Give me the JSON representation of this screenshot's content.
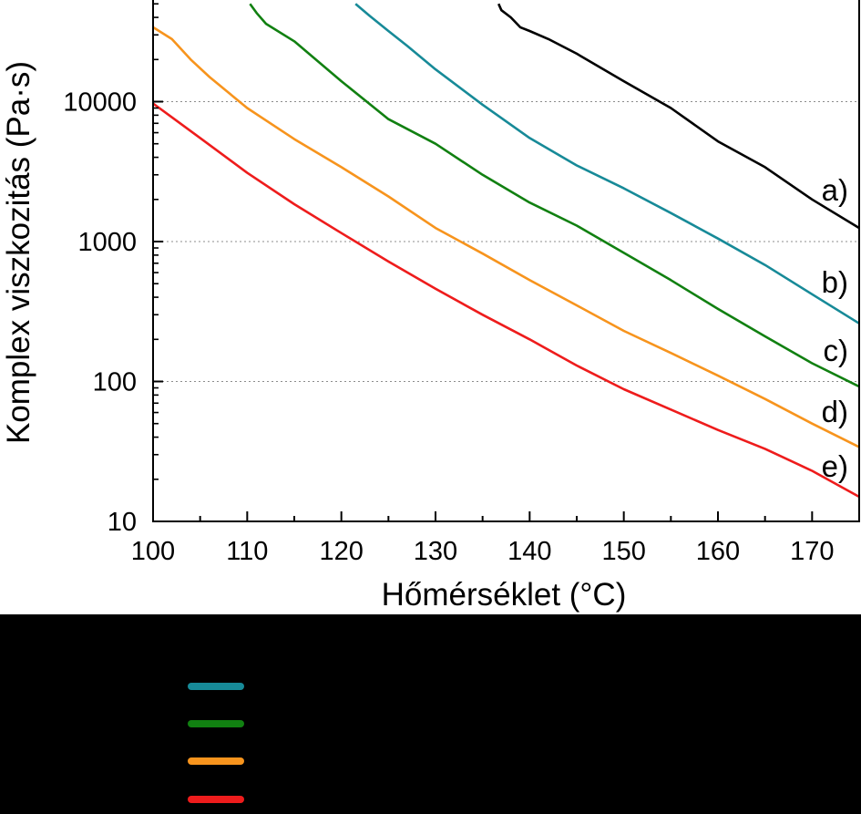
{
  "chart_data": {
    "type": "line",
    "title": "",
    "xlabel": "Hőmérséklet (°C)",
    "ylabel": "Komplex viszkozitás (Pa·s)",
    "xlim": [
      100,
      175
    ],
    "ylim": [
      10,
      50000
    ],
    "yscale": "log",
    "xticks": [
      100,
      110,
      120,
      130,
      140,
      150,
      160,
      170
    ],
    "xtick_labels": [
      "100",
      "110",
      "120",
      "130",
      "140",
      "150",
      "160",
      "170"
    ],
    "yticks": [
      10,
      100,
      1000,
      10000
    ],
    "ytick_labels": [
      "10",
      "100",
      "1000",
      "10000"
    ],
    "grid": "horizontal dotted at major y ticks",
    "series": [
      {
        "name": "a)",
        "color": "#000000",
        "x": [
          136.7,
          137,
          138,
          139,
          140,
          142,
          145,
          150,
          155,
          160,
          165,
          170,
          175
        ],
        "y": [
          50000,
          45000,
          40000,
          34000,
          32000,
          28000,
          22000,
          14000,
          9000,
          5200,
          3400,
          2000,
          1250
        ]
      },
      {
        "name": "b)",
        "color": "#178A98",
        "x": [
          121.5,
          123,
          125,
          127,
          130,
          135,
          140,
          145,
          150,
          155,
          160,
          165,
          170,
          175
        ],
        "y": [
          50000,
          41000,
          32000,
          25000,
          17000,
          9500,
          5500,
          3500,
          2400,
          1600,
          1050,
          680,
          420,
          260
        ]
      },
      {
        "name": "c)",
        "color": "#118011",
        "x": [
          110.3,
          111,
          112,
          115,
          120,
          125,
          130,
          135,
          140,
          145,
          150,
          155,
          160,
          165,
          170,
          175
        ],
        "y": [
          50000,
          43000,
          36000,
          27000,
          14000,
          7500,
          5000,
          3000,
          1900,
          1300,
          830,
          530,
          330,
          210,
          135,
          92
        ]
      },
      {
        "name": "d)",
        "color": "#F7941D",
        "x": [
          100,
          102,
          104,
          106,
          110,
          115,
          120,
          125,
          130,
          135,
          140,
          145,
          150,
          155,
          160,
          165,
          170,
          175
        ],
        "y": [
          34000,
          28000,
          20000,
          15000,
          9000,
          5400,
          3400,
          2100,
          1250,
          820,
          530,
          350,
          230,
          160,
          110,
          75,
          50,
          34
        ]
      },
      {
        "name": "e)",
        "color": "#EE1C1C",
        "x": [
          100,
          105,
          110,
          115,
          120,
          125,
          130,
          135,
          140,
          145,
          150,
          155,
          160,
          165,
          170,
          175
        ],
        "y": [
          9700,
          5500,
          3100,
          1850,
          1150,
          720,
          460,
          300,
          200,
          130,
          88,
          63,
          45,
          33,
          23,
          15
        ]
      }
    ],
    "legend": {
      "placement": "below plot",
      "swatch_colors": [
        "#178A98",
        "#118011",
        "#F7941D",
        "#EE1C1C"
      ]
    }
  }
}
